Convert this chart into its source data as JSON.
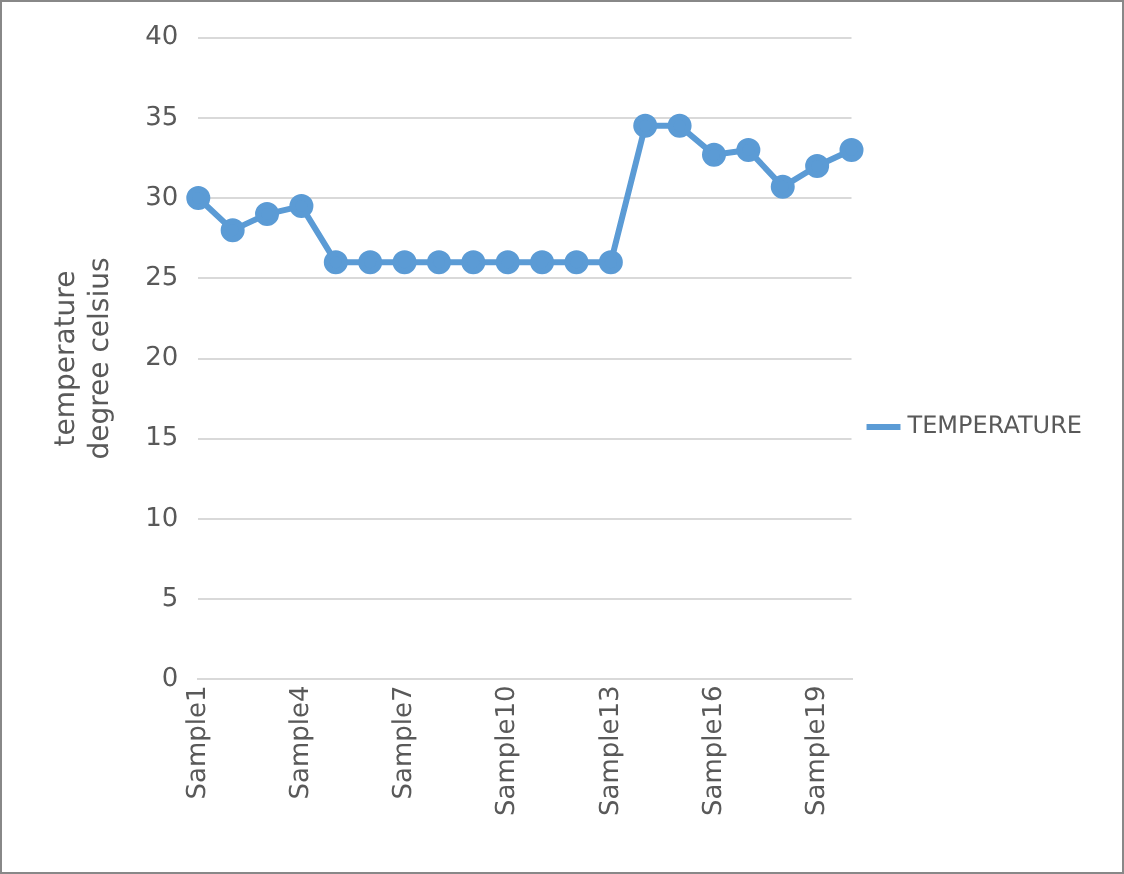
{
  "chart_data": {
    "type": "line",
    "ylabel": "temperature degree celsius",
    "categories": [
      "Sample1",
      null,
      null,
      "Sample4",
      null,
      null,
      "Sample7",
      null,
      null,
      "Sample10",
      null,
      null,
      "Sample13",
      null,
      null,
      "Sample16",
      null,
      null,
      "Sample19",
      null
    ],
    "series": [
      {
        "name": "TEMPERATURE",
        "color": "#5b9bd5",
        "values": [
          30,
          28,
          29,
          29.5,
          26,
          26,
          26,
          26,
          26,
          26,
          26,
          26,
          26,
          34.5,
          34.5,
          32.7,
          33,
          30.7,
          32,
          33
        ]
      }
    ],
    "ylim": [
      0,
      40
    ],
    "yticks": [
      0,
      5,
      10,
      15,
      20,
      25,
      30,
      35,
      40
    ],
    "grid": "y",
    "legend": "right",
    "marker": "circle",
    "line_style": "solid"
  }
}
